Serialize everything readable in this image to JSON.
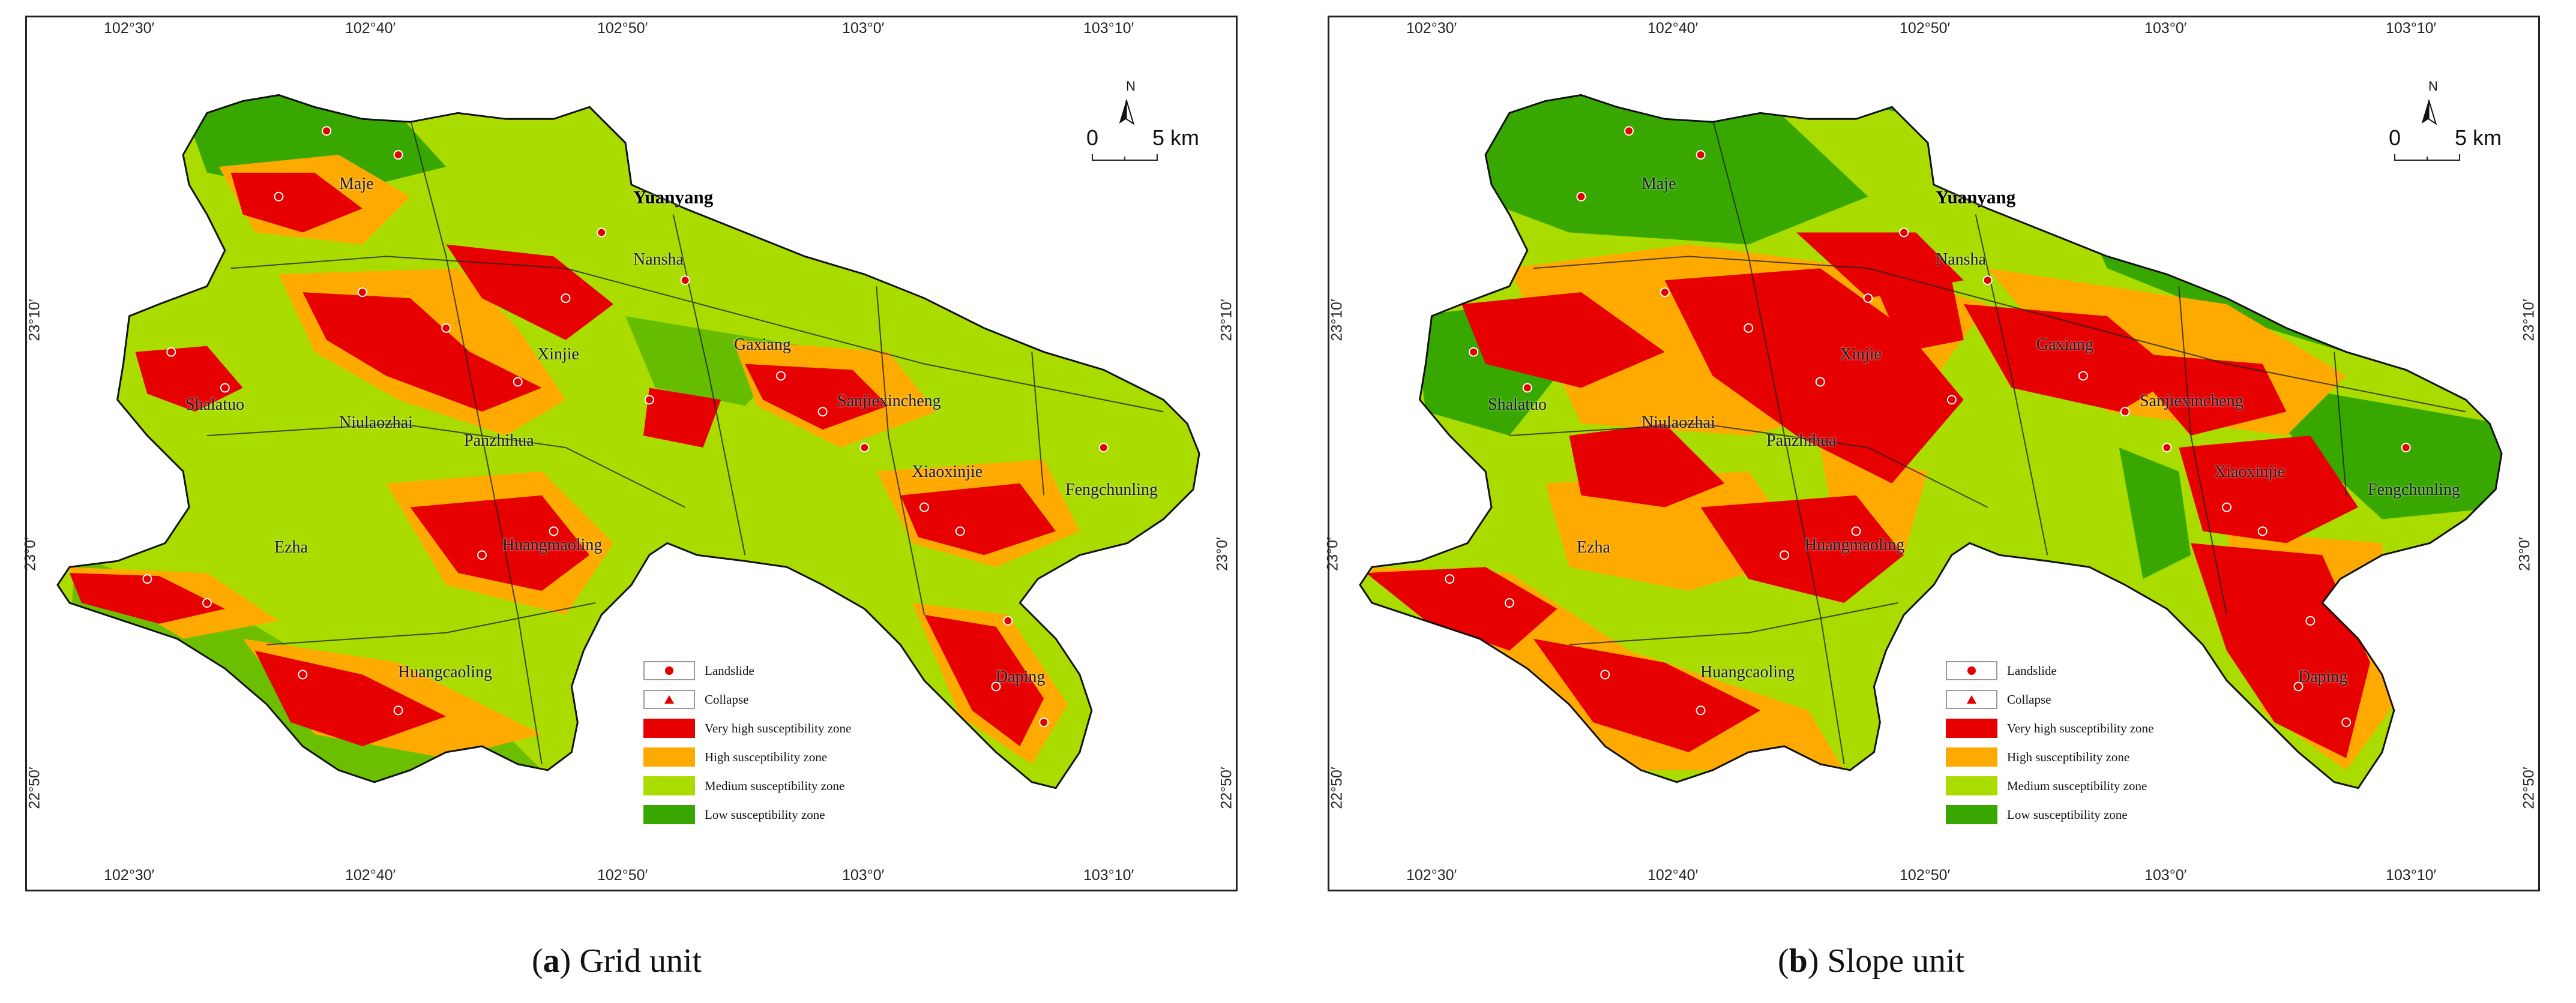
{
  "axes": {
    "top_lon": [
      "102°30′",
      "102°40′",
      "102°50′",
      "103°0′",
      "103°10′"
    ],
    "bottom_lon": [
      "102°30′",
      "102°40′",
      "102°50′",
      "103°0′",
      "103°10′"
    ],
    "lat": [
      "23°10′",
      "23°0′",
      "22°50′"
    ]
  },
  "north_label": "N",
  "scale": {
    "zero": "0",
    "five": "5 km"
  },
  "places": [
    "Yuanyang",
    "Maje",
    "Nansha",
    "Gaxiang",
    "Xinjie",
    "Shalatuo",
    "Niulaozhai",
    "Panzhihua",
    "Sanjiexincheng",
    "Xiaoxinjie",
    "Fengchunling",
    "Ezha",
    "Huangmaoling",
    "Huangcaoling",
    "Daping"
  ],
  "legend": [
    {
      "label": "Landslide",
      "symbol": "dot"
    },
    {
      "label": "Collapse",
      "symbol": "triangle"
    },
    {
      "label": "Very high susceptibility zone",
      "color": "#e60000"
    },
    {
      "label": "High susceptibility zone",
      "color": "#ffaa00"
    },
    {
      "label": "Medium susceptibility zone",
      "color": "#aadc00"
    },
    {
      "label": "Low susceptibility zone",
      "color": "#38a800"
    }
  ],
  "colors": {
    "very_high": "#e60000",
    "high": "#ffaa00",
    "medium": "#aadc00",
    "low": "#38a800",
    "points": "#e00000"
  },
  "panels": [
    {
      "letter": "a",
      "caption": " Grid unit"
    },
    {
      "letter": "b",
      "caption": " Slope unit"
    }
  ]
}
